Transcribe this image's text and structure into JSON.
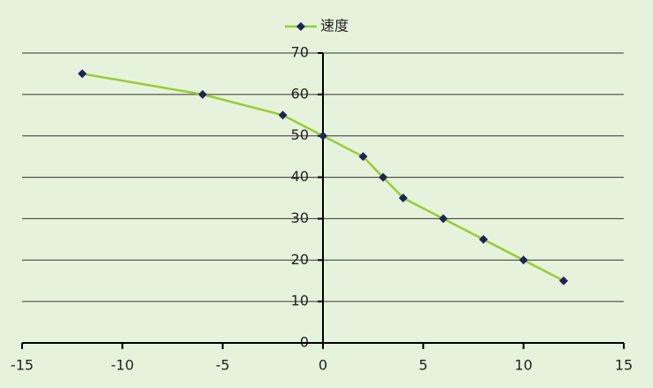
{
  "chart_data": {
    "type": "line",
    "x": [
      -12,
      -6,
      -2,
      0,
      2,
      3,
      4,
      6,
      8,
      10,
      12
    ],
    "series": [
      {
        "name": "速度",
        "color": "#99cc33",
        "marker_color": "#1f2456",
        "values": [
          65,
          60,
          55,
          50,
          45,
          40,
          35,
          30,
          25,
          20,
          15
        ]
      }
    ],
    "xlim": [
      -15,
      15
    ],
    "xticks": [
      -15,
      -10,
      -5,
      0,
      5,
      10,
      15
    ],
    "ylim": [
      0,
      70
    ],
    "yticks": [
      0,
      10,
      20,
      30,
      40,
      50,
      60,
      70
    ],
    "grid": true,
    "legend": "top"
  }
}
